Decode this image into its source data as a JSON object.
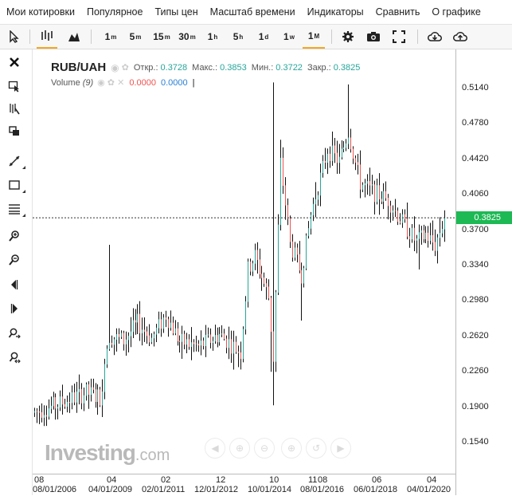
{
  "menu": [
    "Мои котировки",
    "Популярное",
    "Типы цен",
    "Масштаб времени",
    "Индикаторы",
    "Сравнить",
    "О графике"
  ],
  "timeframes": [
    {
      "main": "1",
      "sup": "m"
    },
    {
      "main": "5",
      "sup": "m"
    },
    {
      "main": "15",
      "sup": "m"
    },
    {
      "main": "30",
      "sup": "m"
    },
    {
      "main": "1",
      "sup": "h"
    },
    {
      "main": "5",
      "sup": "h"
    },
    {
      "main": "1",
      "sup": "d"
    },
    {
      "main": "1",
      "sup": "w"
    },
    {
      "main": "1",
      "sup": "M"
    }
  ],
  "active_timeframe": "1M",
  "legend": {
    "symbol": "RUB/UAH",
    "open_label": "Откр.:",
    "open": "0.3728",
    "high_label": "Макс.:",
    "high": "0.3853",
    "low_label": "Мин.:",
    "low": "0.3722",
    "close_label": "Закр.:",
    "close": "0.3825",
    "volume_label": "Volume",
    "volume_period": "(9)",
    "volume_a": "0.0000",
    "volume_b": "0.0000"
  },
  "colors": {
    "up": "#26a69a",
    "down": "#ef5350",
    "bar": "#111111",
    "price_tag": "#1db954"
  },
  "watermark": {
    "brand": "Investing",
    "domain": ".com"
  },
  "chart_data": {
    "type": "ohlc",
    "title": "RUB/UAH",
    "interval": "1M",
    "last_price": 0.3825,
    "y_ticks": [
      0.154,
      0.19,
      0.226,
      0.262,
      0.298,
      0.334,
      0.37,
      0.406,
      0.442,
      0.478,
      0.514
    ],
    "y_tick_labels": [
      "0.1540",
      "0.1900",
      "0.2260",
      "0.2620",
      "0.2980",
      "0.3340",
      "0.3700",
      "0.4060",
      "0.4420",
      "0.4780",
      "0.5140"
    ],
    "ylim": [
      0.1225,
      0.5535
    ],
    "x_ticks_top": [
      "08",
      "04",
      "02",
      "12",
      "10",
      "11",
      "08",
      "06",
      "04"
    ],
    "x_ticks_bottom": [
      "08/01/2006",
      "04/01/2009",
      "02/01/2011",
      "12/01/2012",
      "10/01/2014",
      "08/01/2016",
      "06/01/2018",
      "04/01/2020"
    ],
    "x_start": "2006-08",
    "x_end": "2021-03",
    "anchors": [
      {
        "date": "2006-08",
        "value": 0.185
      },
      {
        "date": "2007-06",
        "value": 0.193
      },
      {
        "date": "2008-06",
        "value": 0.205
      },
      {
        "date": "2009-01",
        "value": 0.2
      },
      {
        "date": "2009-02",
        "value": 0.242
      },
      {
        "date": "2009-04",
        "value": 0.262
      },
      {
        "date": "2009-10",
        "value": 0.258
      },
      {
        "date": "2010-04",
        "value": 0.276
      },
      {
        "date": "2010-10",
        "value": 0.26
      },
      {
        "date": "2011-04",
        "value": 0.284
      },
      {
        "date": "2011-10",
        "value": 0.257
      },
      {
        "date": "2012-06",
        "value": 0.252
      },
      {
        "date": "2013-03",
        "value": 0.264
      },
      {
        "date": "2013-12",
        "value": 0.246
      },
      {
        "date": "2014-03",
        "value": 0.33
      },
      {
        "date": "2014-06",
        "value": 0.344
      },
      {
        "date": "2014-12",
        "value": 0.302
      },
      {
        "date": "2015-02",
        "value": 0.24
      },
      {
        "date": "2015-05",
        "value": 0.438
      },
      {
        "date": "2015-09",
        "value": 0.356
      },
      {
        "date": "2016-02",
        "value": 0.325
      },
      {
        "date": "2016-06",
        "value": 0.386
      },
      {
        "date": "2017-01",
        "value": 0.452
      },
      {
        "date": "2017-06",
        "value": 0.44
      },
      {
        "date": "2017-10",
        "value": 0.47
      },
      {
        "date": "2018-03",
        "value": 0.418
      },
      {
        "date": "2018-09",
        "value": 0.408
      },
      {
        "date": "2019-03",
        "value": 0.401
      },
      {
        "date": "2019-09",
        "value": 0.378
      },
      {
        "date": "2020-03",
        "value": 0.358
      },
      {
        "date": "2020-07",
        "value": 0.366
      },
      {
        "date": "2020-11",
        "value": 0.355
      },
      {
        "date": "2021-03",
        "value": 0.3825
      }
    ]
  }
}
